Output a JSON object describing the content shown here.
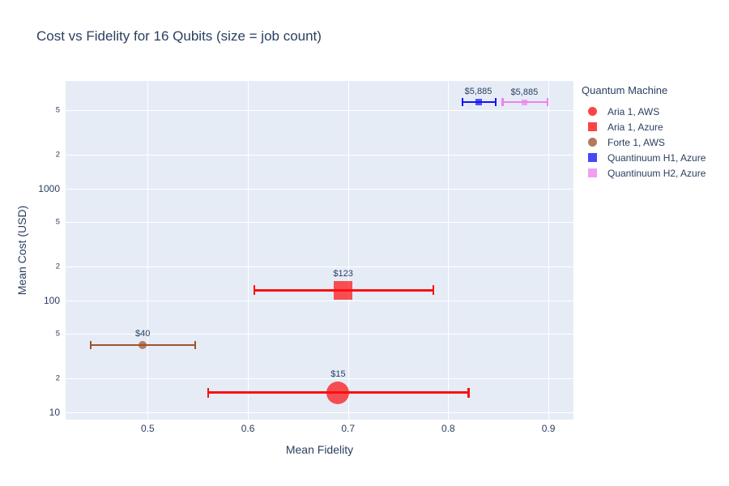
{
  "title": "Cost vs Fidelity for 16 Qubits (size = job count)",
  "colors": {
    "text": "#2a3f5f",
    "plot_background": "#e5ecf6",
    "gridline": "#ffffff",
    "page_background": "#ffffff"
  },
  "chart_data": {
    "type": "scatter",
    "title": "Cost vs Fidelity for 16 Qubits (size = job count)",
    "xlabel": "Mean Fidelity",
    "ylabel": "Mean Cost (USD)",
    "legend_title": "Quantum Machine",
    "grid": true,
    "legend_position": "right",
    "x_scale": "linear",
    "y_scale": "log",
    "xlim": [
      0.418,
      0.925
    ],
    "ylim": [
      8.6,
      9100
    ],
    "x_ticks": [
      {
        "v": 0.5,
        "t": "0.5"
      },
      {
        "v": 0.6,
        "t": "0.6"
      },
      {
        "v": 0.7,
        "t": "0.7"
      },
      {
        "v": 0.8,
        "t": "0.8"
      },
      {
        "v": 0.9,
        "t": "0.9"
      }
    ],
    "y_ticks": [
      {
        "v": 10,
        "t": "10",
        "major": true
      },
      {
        "v": 20,
        "t": "2",
        "major": false
      },
      {
        "v": 50,
        "t": "5",
        "major": false
      },
      {
        "v": 100,
        "t": "100",
        "major": true
      },
      {
        "v": 200,
        "t": "2",
        "major": false
      },
      {
        "v": 500,
        "t": "5",
        "major": false
      },
      {
        "v": 1000,
        "t": "1000",
        "major": true
      },
      {
        "v": 2000,
        "t": "2",
        "major": false
      },
      {
        "v": 5000,
        "t": "5",
        "major": false
      }
    ],
    "series": [
      {
        "name": "Aria 1, AWS",
        "marker": "circle",
        "color": "#fb0f12",
        "x": 0.69,
        "y": 15,
        "x_err": [
          0.56,
          0.82
        ],
        "label": "$15",
        "marker_size": 28,
        "error_width": 3
      },
      {
        "name": "Aria 1, Azure",
        "marker": "square",
        "color": "#fb0f12",
        "x": 0.695,
        "y": 123,
        "x_err": [
          0.606,
          0.785
        ],
        "label": "$123",
        "marker_size": 23,
        "error_width": 3
      },
      {
        "name": "Forte 1, AWS",
        "marker": "circle",
        "color": "#a0522d",
        "x": 0.495,
        "y": 40,
        "x_err": [
          0.443,
          0.547
        ],
        "label": "$40",
        "marker_size": 10,
        "error_width": 2
      },
      {
        "name": "Quantinuum H1, Azure",
        "marker": "square",
        "color": "#1414f5",
        "x": 0.83,
        "y": 5885,
        "x_err": [
          0.814,
          0.847
        ],
        "label": "$5,885",
        "marker_size": 8,
        "error_width": 2
      },
      {
        "name": "Quantinuum H2, Azure",
        "marker": "square",
        "color": "#ee82ee",
        "x": 0.876,
        "y": 5885,
        "x_err": [
          0.854,
          0.899
        ],
        "label": "$5,885",
        "marker_size": 7,
        "error_width": 2
      }
    ]
  }
}
